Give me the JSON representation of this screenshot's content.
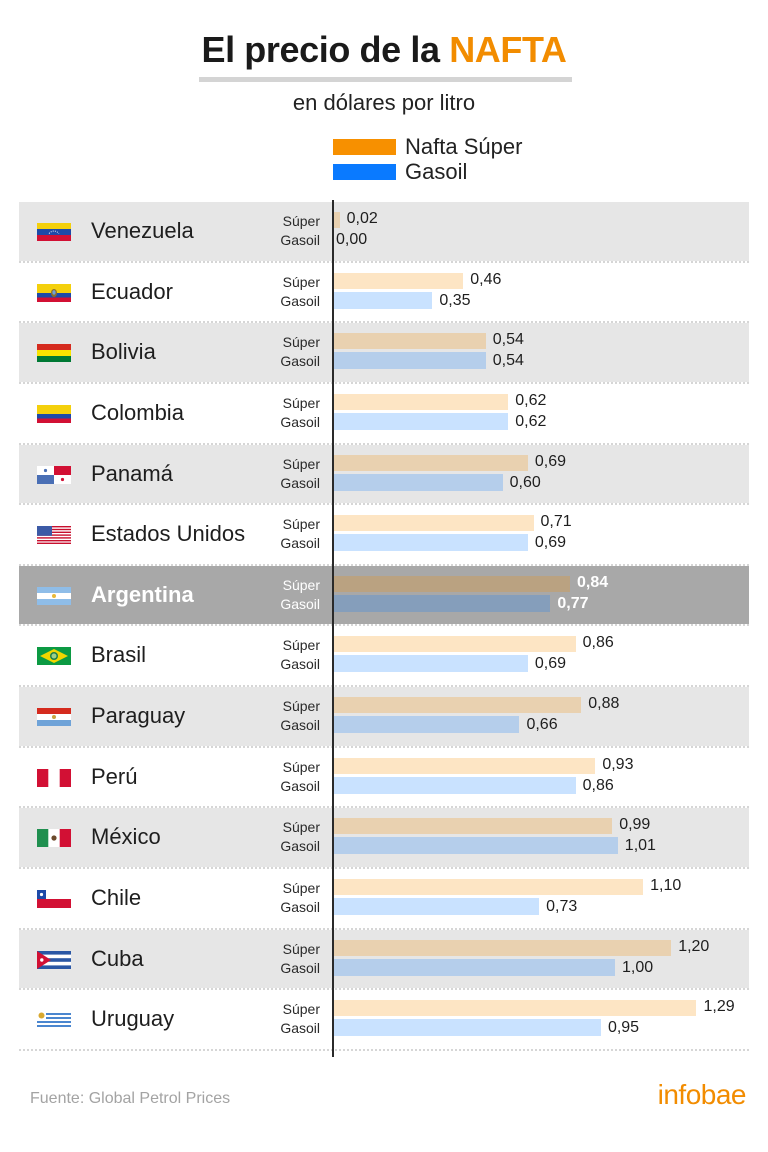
{
  "header": {
    "title_prefix": "El precio de la ",
    "title_highlight": "NAFTA",
    "subtitle": "en dólares por litro"
  },
  "legend": [
    {
      "label": "Nafta Súper",
      "color": "#f79000"
    },
    {
      "label": "Gasoil",
      "color": "#0a7aff"
    }
  ],
  "row_labels": {
    "super": "Súper",
    "gasoil": "Gasoil"
  },
  "highlight_country": "Argentina",
  "footer": {
    "source": "Fuente: Global Petrol Prices",
    "brand": "infobae"
  },
  "colors": {
    "accent": "#f28c00",
    "super": "#f79000",
    "gasoil": "#0a7aff",
    "row_shade": "#e6e6e6",
    "row_highlight": "#a8a8a8"
  },
  "chart_data": {
    "type": "bar",
    "orientation": "horizontal",
    "title": "El precio de la NAFTA",
    "subtitle": "en dólares por litro",
    "xlabel": "",
    "ylabel": "",
    "unit": "USD por litro",
    "xlim": [
      0,
      1.29
    ],
    "grid": false,
    "legend_position": "top-right",
    "categories": [
      "Venezuela",
      "Ecuador",
      "Bolivia",
      "Colombia",
      "Panamá",
      "Estados Unidos",
      "Argentina",
      "Brasil",
      "Paraguay",
      "Perú",
      "México",
      "Chile",
      "Cuba",
      "Uruguay"
    ],
    "flags": [
      "venezuela",
      "ecuador",
      "bolivia",
      "colombia",
      "panama",
      "usa",
      "argentina",
      "brasil",
      "paraguay",
      "peru",
      "mexico",
      "chile",
      "cuba",
      "uruguay"
    ],
    "series": [
      {
        "name": "Nafta Súper",
        "key": "super",
        "color": "#f79000",
        "values": [
          0.02,
          0.46,
          0.54,
          0.62,
          0.69,
          0.71,
          0.84,
          0.86,
          0.88,
          0.93,
          0.99,
          1.1,
          1.2,
          1.29
        ],
        "labels": [
          "0,02",
          "0,46",
          "0,54",
          "0,62",
          "0,69",
          "0,71",
          "0,84",
          "0,86",
          "0,88",
          "0,93",
          "0,99",
          "1,10",
          "1,20",
          "1,29"
        ]
      },
      {
        "name": "Gasoil",
        "key": "gasoil",
        "color": "#0a7aff",
        "values": [
          0.0,
          0.35,
          0.54,
          0.62,
          0.6,
          0.69,
          0.77,
          0.69,
          0.66,
          0.86,
          1.01,
          0.73,
          1.0,
          0.95
        ],
        "labels": [
          "0,00",
          "0,35",
          "0,54",
          "0,62",
          "0,60",
          "0,69",
          "0,77",
          "0,69",
          "0,66",
          "0,86",
          "1,01",
          "0,73",
          "1,00",
          "0,95"
        ]
      }
    ],
    "source": "Global Petrol Prices"
  }
}
